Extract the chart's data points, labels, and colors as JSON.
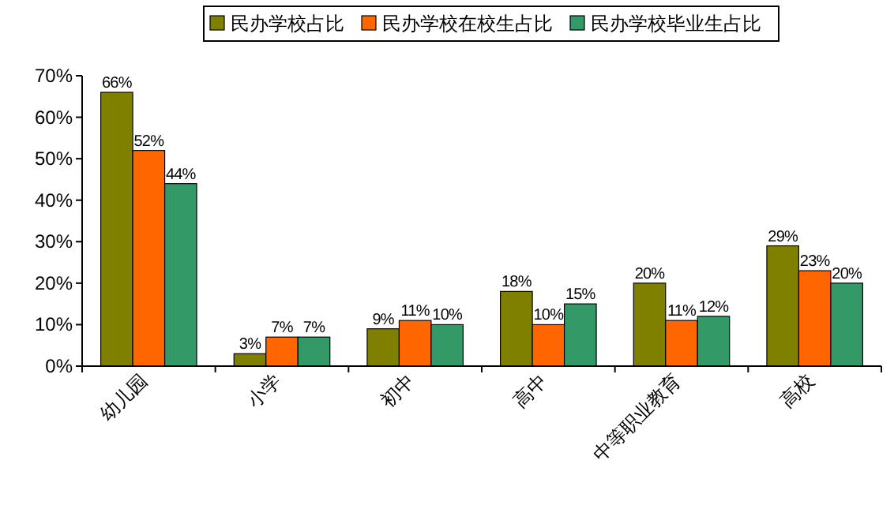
{
  "chart_data": {
    "type": "bar",
    "categories": [
      "幼儿园",
      "小学",
      "初中",
      "高中",
      "中等职业教育",
      "高校"
    ],
    "series": [
      {
        "name": "民办学校占比",
        "color": "#808000",
        "values": [
          66,
          3,
          9,
          18,
          20,
          29
        ],
        "value_labels": [
          "66%",
          "3%",
          "9%",
          "18%",
          "20%",
          "29%"
        ]
      },
      {
        "name": "民办学校在校生占比",
        "color": "#ff6600",
        "values": [
          52,
          7,
          11,
          10,
          11,
          23
        ],
        "value_labels": [
          "52%",
          "7%",
          "11%",
          "10%",
          "11%",
          "23%"
        ]
      },
      {
        "name": "民办学校毕业生占比",
        "color": "#339966",
        "values": [
          44,
          7,
          10,
          15,
          12,
          20
        ],
        "value_labels": [
          "44%",
          "7%",
          "10%",
          "15%",
          "12%",
          "20%"
        ]
      }
    ],
    "ylim": [
      0,
      70
    ],
    "yticks": [
      {
        "value": 0,
        "label": "0%"
      },
      {
        "value": 10,
        "label": "10%"
      },
      {
        "value": 20,
        "label": "20%"
      },
      {
        "value": 30,
        "label": "30%"
      },
      {
        "value": 40,
        "label": "40%"
      },
      {
        "value": 50,
        "label": "50%"
      },
      {
        "value": 60,
        "label": "60%"
      },
      {
        "value": 70,
        "label": "70%"
      }
    ],
    "grid": false,
    "legend": "top"
  }
}
